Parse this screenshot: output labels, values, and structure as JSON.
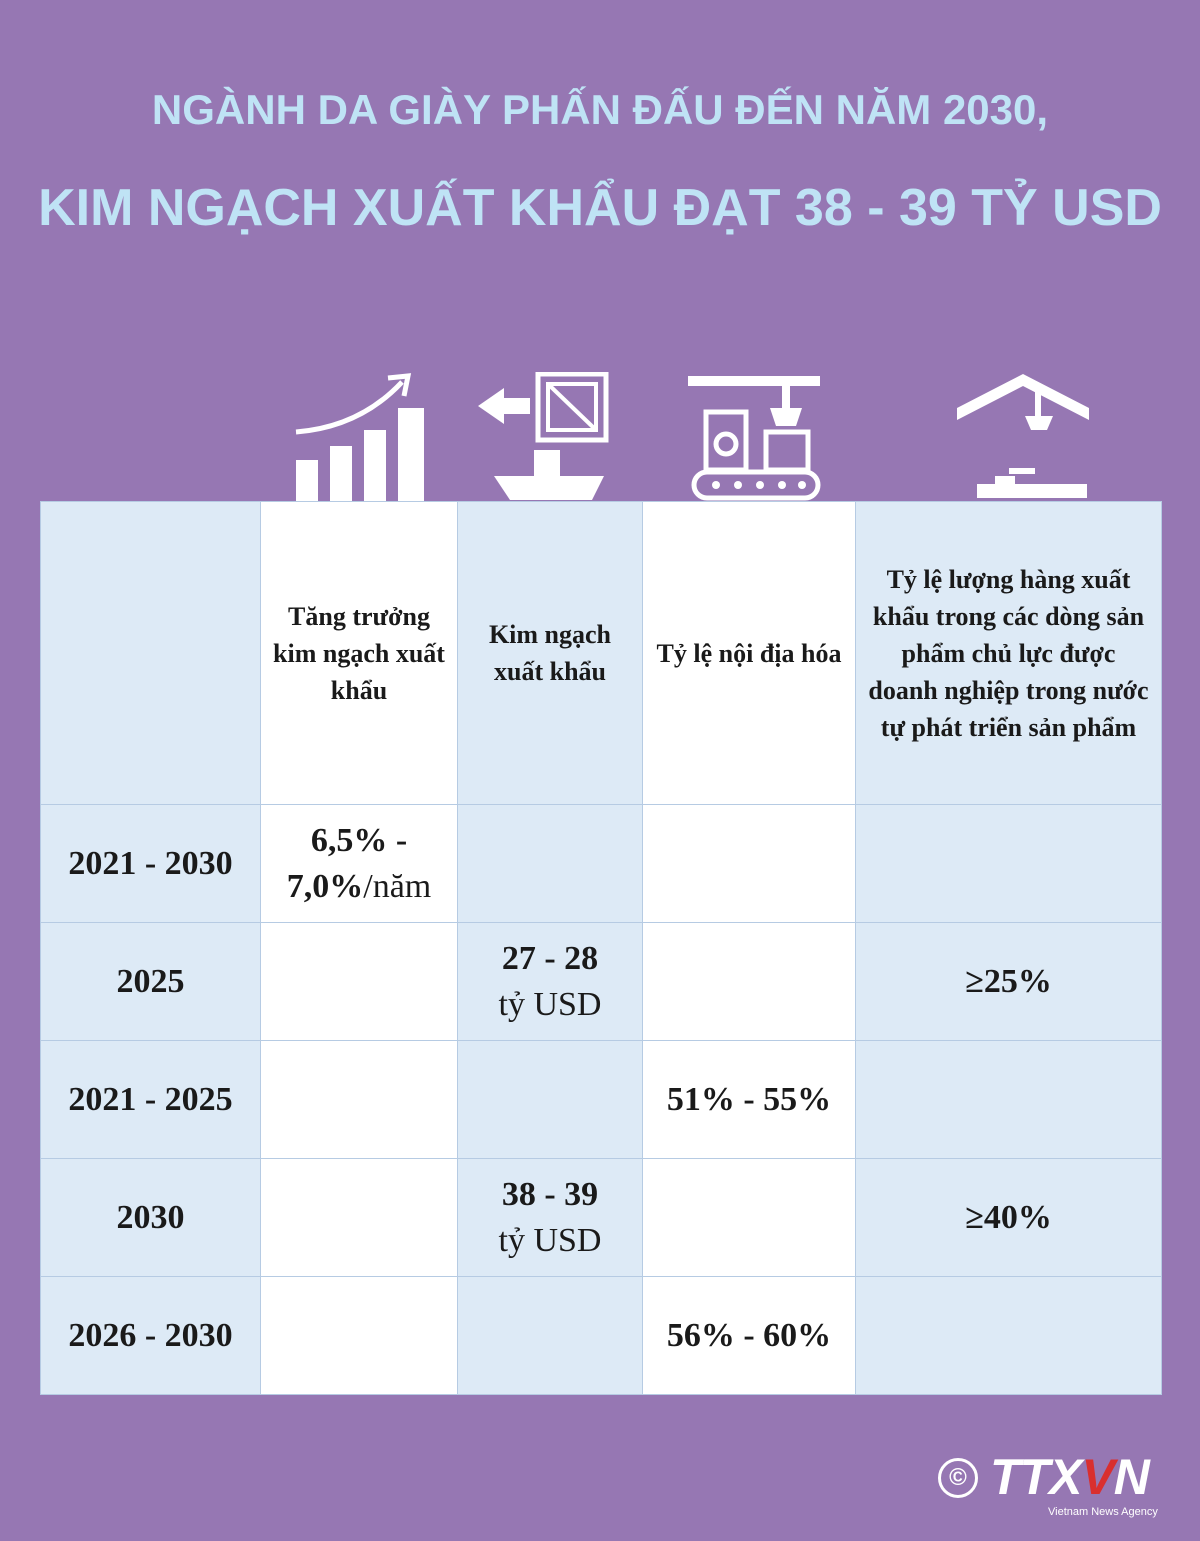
{
  "header": {
    "title_line1": "NGÀNH DA GIÀY PHẤN ĐẤU ĐẾN NĂM 2030,",
    "title_line2": "KIM NGẠCH XUẤT KHẨU ĐẠT 38 - 39 TỶ USD"
  },
  "colors": {
    "background": "#9677b3",
    "title": "#bfe3f5",
    "cell_light": "#ddeaf6",
    "cell_white": "#ffffff",
    "logo_accent": "#d92f2f"
  },
  "icons": [
    "growth-chart-icon",
    "export-ship-icon",
    "factory-conveyor-icon",
    "workshop-crane-icon"
  ],
  "table": {
    "headers": [
      "",
      "Tăng trưởng kim ngạch xuất khẩu",
      "Kim ngạch xuất khẩu",
      "Tỷ lệ nội địa hóa",
      "Tỷ lệ lượng hàng xuất khẩu trong các dòng sản phẩm chủ lực được doanh nghiệp trong nước tự phát triển sản phẩm"
    ],
    "rows": [
      {
        "period": "2021 - 2030",
        "growth_a": "6,5% -",
        "growth_b": "7,0%",
        "growth_unit": "/năm",
        "export": "",
        "export_unit": "",
        "localization": "",
        "self_dev": ""
      },
      {
        "period": "2025",
        "growth_a": "",
        "growth_b": "",
        "growth_unit": "",
        "export": "27 - 28",
        "export_unit": "tỷ USD",
        "localization": "",
        "self_dev": "≥25%"
      },
      {
        "period": "2021 - 2025",
        "growth_a": "",
        "growth_b": "",
        "growth_unit": "",
        "export": "",
        "export_unit": "",
        "localization": "51% - 55%",
        "self_dev": ""
      },
      {
        "period": "2030",
        "growth_a": "",
        "growth_b": "",
        "growth_unit": "",
        "export": "38 - 39",
        "export_unit": "tỷ USD",
        "localization": "",
        "self_dev": "≥40%"
      },
      {
        "period": "2026 - 2030",
        "growth_a": "",
        "growth_b": "",
        "growth_unit": "",
        "export": "",
        "export_unit": "",
        "localization": "56% - 60%",
        "self_dev": ""
      }
    ]
  },
  "footer": {
    "copyright": "©",
    "brand_a": "TTX",
    "brand_v": "V",
    "brand_n": "N",
    "agency": "Vietnam News Agency"
  }
}
